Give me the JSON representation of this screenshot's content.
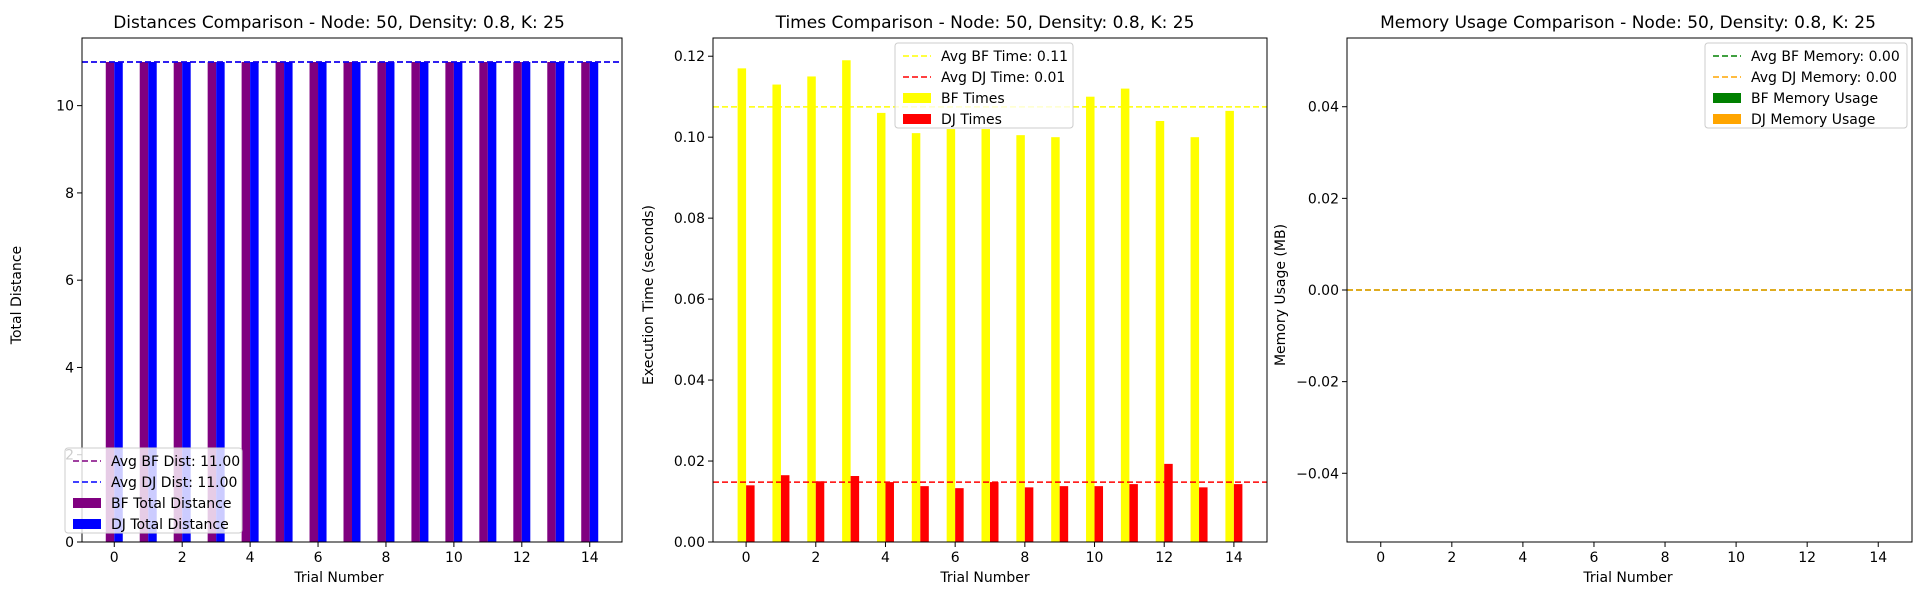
{
  "chart_data": [
    {
      "type": "bar",
      "title": "Distances Comparison - Node: 50, Density: 0.8, K: 25",
      "xlabel": "Trial Number",
      "ylabel": "Total Distance",
      "x": [
        0,
        1,
        2,
        3,
        4,
        5,
        6,
        7,
        8,
        9,
        10,
        11,
        12,
        13,
        14
      ],
      "xlim": [
        -0.95,
        14.95
      ],
      "ylim": [
        0,
        11.55
      ],
      "xticks": [
        0,
        2,
        4,
        6,
        8,
        10,
        12,
        14
      ],
      "yticks": [
        0,
        2,
        4,
        6,
        8,
        10
      ],
      "ytick_labels": [
        "0",
        "2",
        "4",
        "6",
        "8",
        "10"
      ],
      "series": [
        {
          "name": "BF Total Distance",
          "color": "#800080",
          "values": [
            11,
            11,
            11,
            11,
            11,
            11,
            11,
            11,
            11,
            11,
            11,
            11,
            11,
            11,
            11
          ]
        },
        {
          "name": "DJ Total Distance",
          "color": "#0000ff",
          "values": [
            11,
            11,
            11,
            11,
            11,
            11,
            11,
            11,
            11,
            11,
            11,
            11,
            11,
            11,
            11
          ]
        }
      ],
      "hlines": [
        {
          "name": "Avg BF Dist: 11.00",
          "value": 11.0,
          "color": "#800080"
        },
        {
          "name": "Avg DJ Dist: 11.00",
          "value": 11.0,
          "color": "#0000ff"
        }
      ],
      "legend": "lower-left"
    },
    {
      "type": "bar",
      "title": "Times Comparison - Node: 50, Density: 0.8, K: 25",
      "xlabel": "Trial Number",
      "ylabel": "Execution Time (seconds)",
      "x": [
        0,
        1,
        2,
        3,
        4,
        5,
        6,
        7,
        8,
        9,
        10,
        11,
        12,
        13,
        14
      ],
      "xlim": [
        -0.95,
        14.95
      ],
      "ylim": [
        0,
        0.1245
      ],
      "xticks": [
        0,
        2,
        4,
        6,
        8,
        10,
        12,
        14
      ],
      "yticks": [
        0,
        0.02,
        0.04,
        0.06,
        0.08,
        0.1,
        0.12
      ],
      "ytick_labels": [
        "0.00",
        "0.02",
        "0.04",
        "0.06",
        "0.08",
        "0.10",
        "0.12"
      ],
      "series": [
        {
          "name": "BF Times",
          "color": "#ffff00",
          "values": [
            0.117,
            0.113,
            0.115,
            0.119,
            0.106,
            0.101,
            0.102,
            0.102,
            0.1005,
            0.1,
            0.11,
            0.112,
            0.104,
            0.1,
            0.1065
          ]
        },
        {
          "name": "DJ Times",
          "color": "#ff0000",
          "values": [
            0.014,
            0.0165,
            0.015,
            0.0163,
            0.0148,
            0.0138,
            0.0133,
            0.0148,
            0.0135,
            0.0138,
            0.0138,
            0.0143,
            0.0193,
            0.0135,
            0.0143
          ]
        }
      ],
      "hlines": [
        {
          "name": "Avg BF Time: 0.11",
          "value": 0.1075,
          "color": "#ffff00"
        },
        {
          "name": "Avg DJ Time: 0.01",
          "value": 0.0148,
          "color": "#ff0000"
        }
      ],
      "legend": "upper-center"
    },
    {
      "type": "bar",
      "title": "Memory Usage Comparison - Node: 50, Density: 0.8, K: 25",
      "xlabel": "Trial Number",
      "ylabel": "Memory Usage (MB)",
      "x": [
        0,
        1,
        2,
        3,
        4,
        5,
        6,
        7,
        8,
        9,
        10,
        11,
        12,
        13,
        14
      ],
      "xlim": [
        -0.95,
        14.95
      ],
      "ylim": [
        -0.055,
        0.055
      ],
      "xticks": [
        0,
        2,
        4,
        6,
        8,
        10,
        12,
        14
      ],
      "yticks": [
        -0.04,
        -0.02,
        0.0,
        0.02,
        0.04
      ],
      "ytick_labels": [
        "−0.04",
        "−0.02",
        "0.00",
        "0.02",
        "0.04"
      ],
      "series": [
        {
          "name": "BF Memory Usage",
          "color": "#008000",
          "values": [
            0,
            0,
            0,
            0,
            0,
            0,
            0,
            0,
            0,
            0,
            0,
            0,
            0,
            0,
            0
          ]
        },
        {
          "name": "DJ Memory Usage",
          "color": "#ffa500",
          "values": [
            0,
            0,
            0,
            0,
            0,
            0,
            0,
            0,
            0,
            0,
            0,
            0,
            0,
            0,
            0
          ]
        }
      ],
      "hlines": [
        {
          "name": "Avg BF Memory: 0.00",
          "value": 0.0,
          "color": "#008000"
        },
        {
          "name": "Avg DJ Memory: 0.00",
          "value": 0.0,
          "color": "#ffa500"
        }
      ],
      "legend": "upper-right"
    }
  ]
}
